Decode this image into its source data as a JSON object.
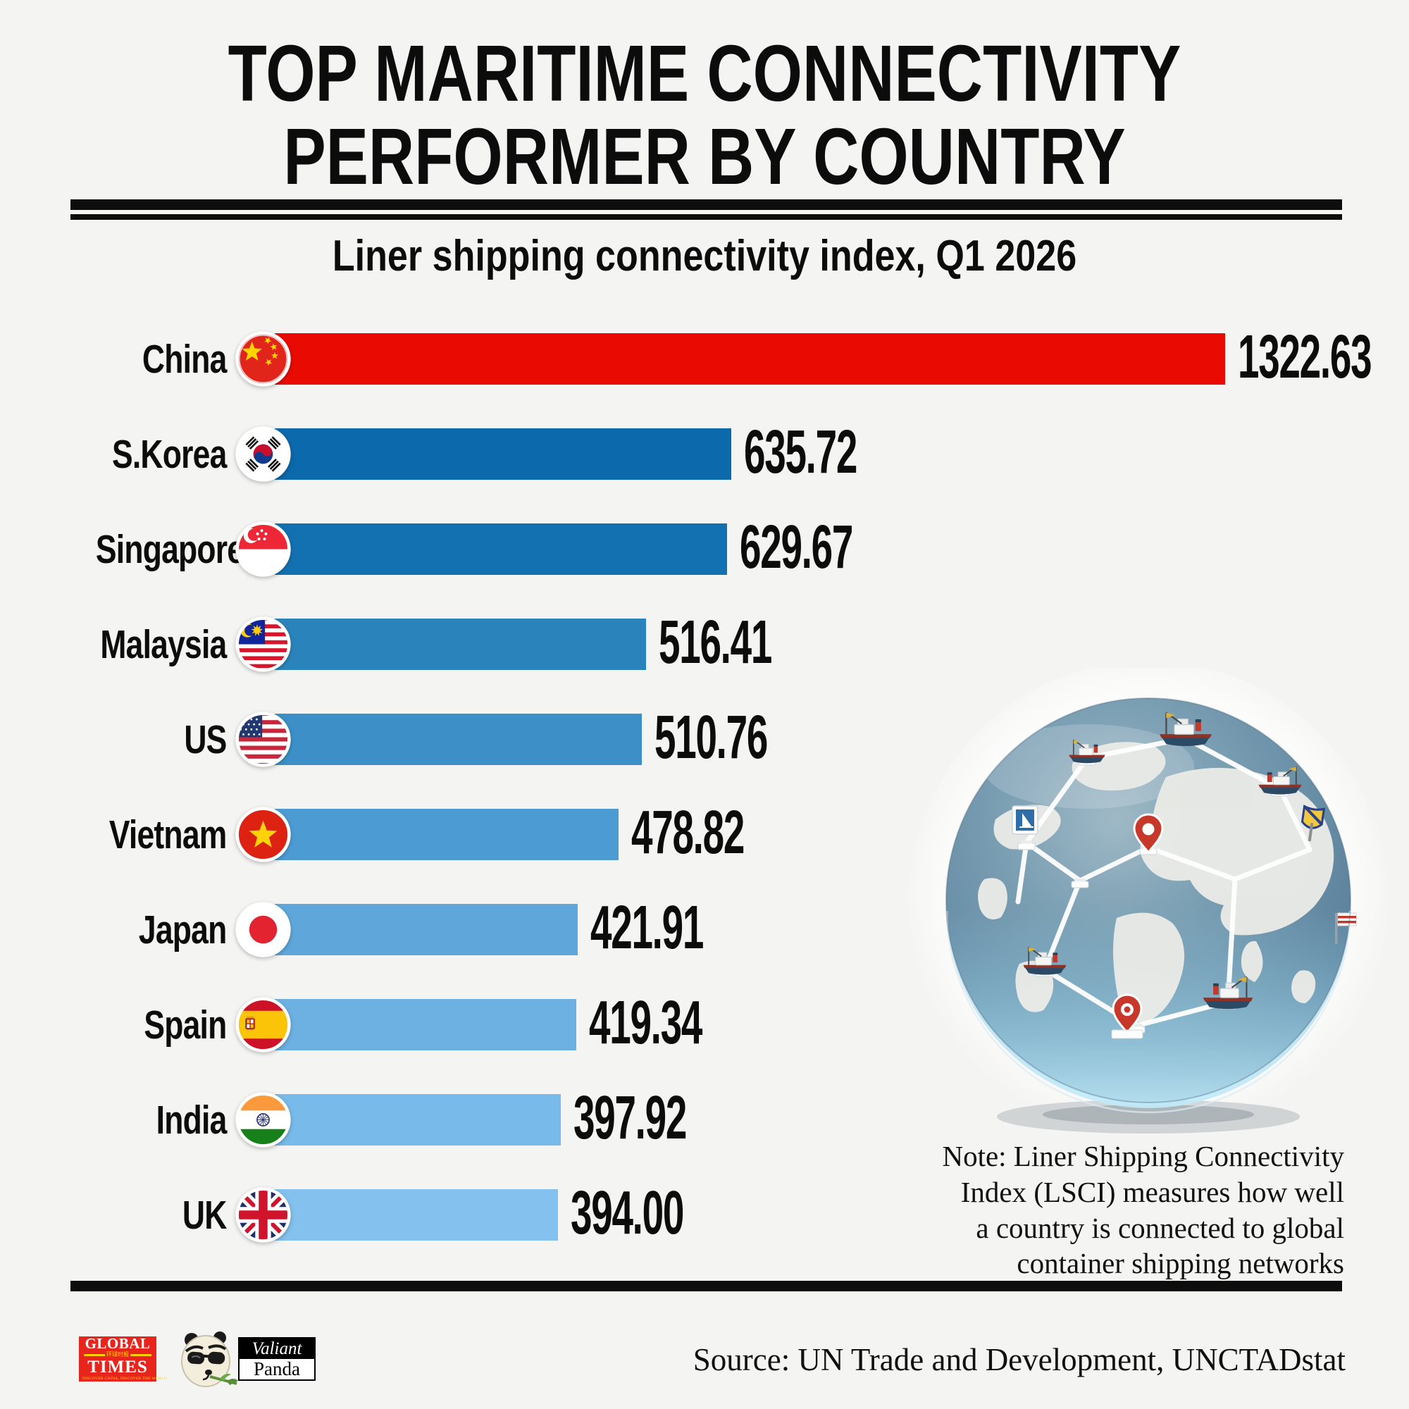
{
  "header": {
    "title": "TOP MARITIME CONNECTIVITY\nPERFORMER BY COUNTRY",
    "subtitle": "Liner shipping connectivity index, Q1 2026"
  },
  "chart_data": {
    "type": "bar",
    "orientation": "horizontal",
    "title": "Top maritime connectivity performer by country",
    "subtitle": "Liner shipping connectivity index, Q1 2026",
    "value_axis": {
      "min": 0,
      "max_value_shown": 1322.63,
      "gridlines": false
    },
    "legend": "none",
    "categories": [
      "China",
      "S.Korea",
      "Singapore",
      "Malaysia",
      "US",
      "Vietnam",
      "Japan",
      "Spain",
      "India",
      "UK"
    ],
    "values": [
      1322.63,
      635.72,
      629.67,
      516.41,
      510.76,
      478.82,
      421.91,
      419.34,
      397.92,
      394.0
    ],
    "items": [
      {
        "label": "China",
        "value": 1322.63,
        "display": "1322.63",
        "flag": "china",
        "bar_color": "#e90b02"
      },
      {
        "label": "S.Korea",
        "value": 635.72,
        "display": "635.72",
        "flag": "south-korea",
        "bar_color": "#0b69ac"
      },
      {
        "label": "Singapore",
        "value": 629.67,
        "display": "629.67",
        "flag": "singapore",
        "bar_color": "#1471b1"
      },
      {
        "label": "Malaysia",
        "value": 516.41,
        "display": "516.41",
        "flag": "malaysia",
        "bar_color": "#2a84bb"
      },
      {
        "label": "US",
        "value": 510.76,
        "display": "510.76",
        "flag": "us",
        "bar_color": "#3c90c7"
      },
      {
        "label": "Vietnam",
        "value": 478.82,
        "display": "478.82",
        "flag": "vietnam",
        "bar_color": "#4d9bd3"
      },
      {
        "label": "Japan",
        "value": 421.91,
        "display": "421.91",
        "flag": "japan",
        "bar_color": "#5fa7da"
      },
      {
        "label": "Spain",
        "value": 419.34,
        "display": "419.34",
        "flag": "spain",
        "bar_color": "#6db1e2"
      },
      {
        "label": "India",
        "value": 397.92,
        "display": "397.92",
        "flag": "india",
        "bar_color": "#78bae9"
      },
      {
        "label": "UK",
        "value": 394.0,
        "display": "394.00",
        "flag": "uk",
        "bar_color": "#84c1ee"
      }
    ]
  },
  "note": "Note: Liner Shipping Connectivity\nIndex (LSCI) measures how well\na country is connected to global\ncontainer shipping networks",
  "source": "Source: UN Trade and Development, UNCTADstat",
  "footer_logos": {
    "global_times": {
      "word1": "GLOBAL",
      "word2": "TIMES",
      "chinese": "环球时报",
      "tagline": "DISCOVER CHINA, DISCOVER THE WORLD",
      "brand_color": "#e8251d"
    },
    "valiant_panda": {
      "word1": "Valiant",
      "word2": "Panda"
    }
  },
  "colors": {
    "background": "#f4f4f2",
    "highlight_bar": "#e90b02",
    "text": "#0c0c0c"
  }
}
